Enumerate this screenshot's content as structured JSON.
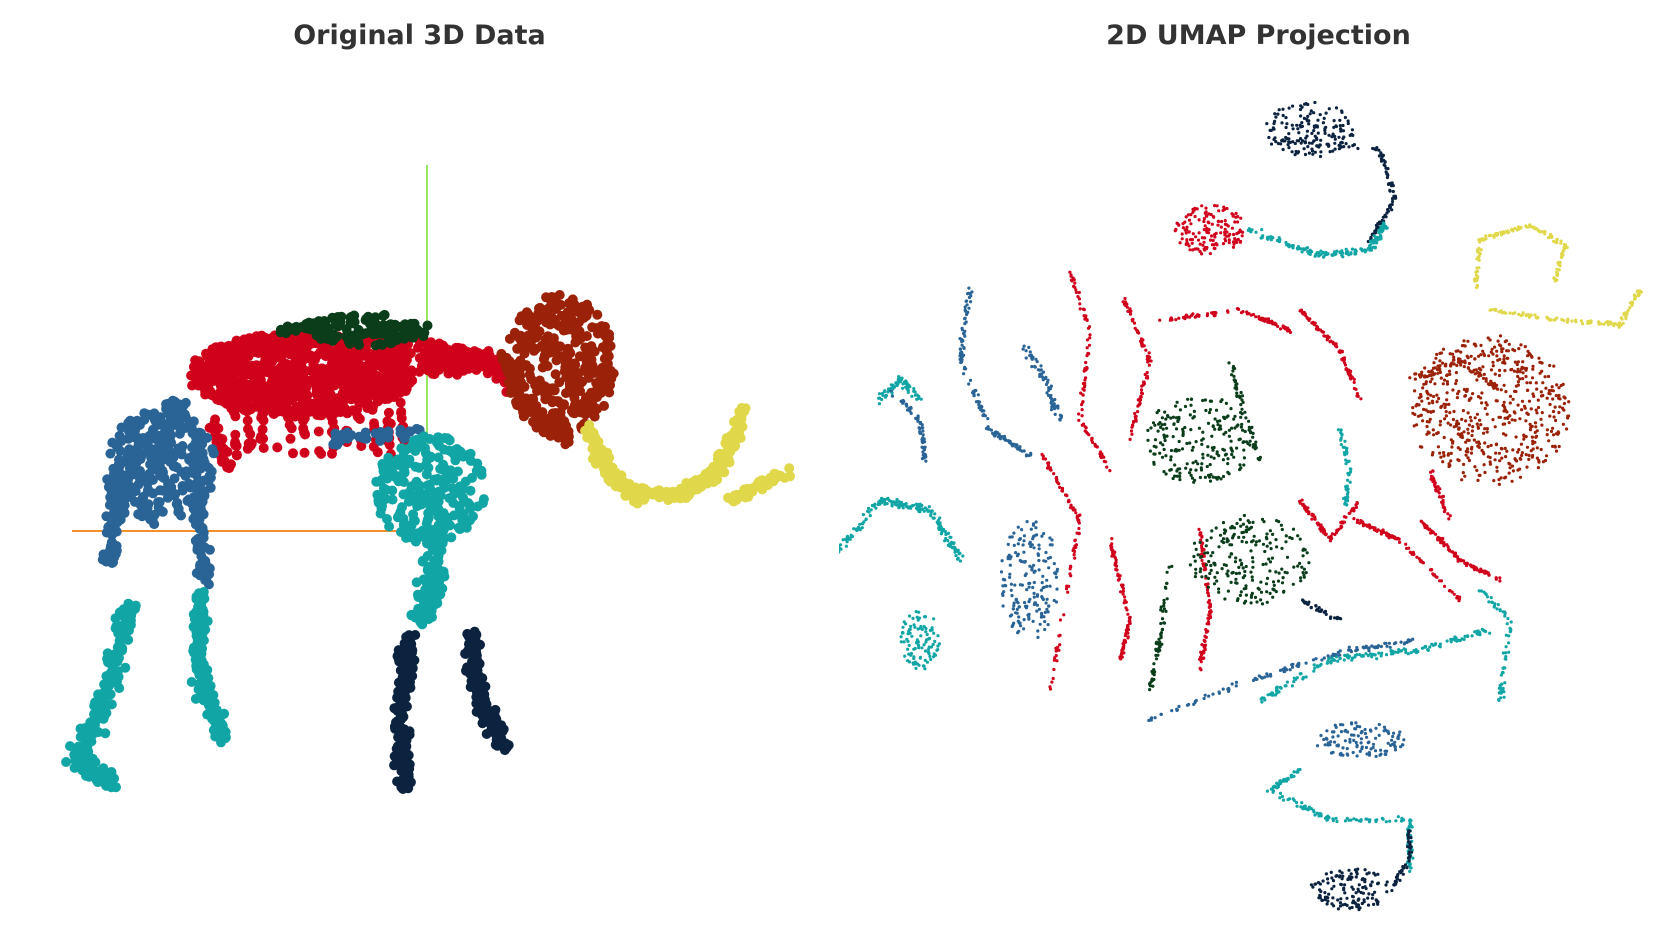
{
  "chart_data": [
    {
      "type": "scatter",
      "title": "Original 3D Data",
      "xlabel": "",
      "ylabel": "",
      "grid": false,
      "legend": "none",
      "axes_lines": {
        "x_axis_color": "#f28e2b",
        "y_axis_color": "#9be564"
      },
      "series": [
        {
          "color": "#2a6496",
          "part": "back-legs-upper"
        },
        {
          "color": "#12a5a5",
          "part": "legs-lower-and-shoulder"
        },
        {
          "color": "#0c2340",
          "part": "front-feet"
        },
        {
          "color": "#d0021b",
          "part": "ribcage-and-neck"
        },
        {
          "color": "#0b3d1a",
          "part": "spine-top"
        },
        {
          "color": "#9b2208",
          "part": "head"
        },
        {
          "color": "#e0d84a",
          "part": "tusk"
        }
      ]
    },
    {
      "type": "scatter",
      "title": "2D UMAP Projection",
      "xlabel": "",
      "ylabel": "",
      "grid": false,
      "legend": "none",
      "series": [
        {
          "color": "#2a6496"
        },
        {
          "color": "#12a5a5"
        },
        {
          "color": "#0c2340"
        },
        {
          "color": "#d0021b"
        },
        {
          "color": "#0b3d1a"
        },
        {
          "color": "#9b2208"
        },
        {
          "color": "#e0d84a"
        }
      ]
    }
  ]
}
